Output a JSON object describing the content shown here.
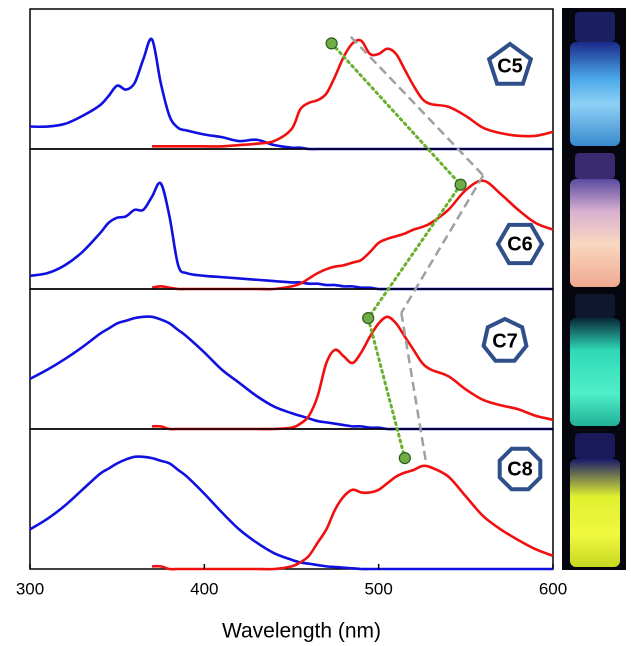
{
  "chart_data": [
    {
      "type": "line",
      "label": "C5",
      "x": [
        300,
        310,
        320,
        330,
        340,
        345,
        350,
        355,
        360,
        365,
        370,
        375,
        380,
        385,
        390,
        400,
        410,
        420,
        430,
        440,
        450,
        455,
        460,
        465,
        470,
        475,
        480,
        485,
        490,
        495,
        500,
        505,
        510,
        515,
        520,
        525,
        530,
        540,
        550,
        560,
        570,
        580,
        590,
        600
      ],
      "xlim": [
        300,
        600
      ],
      "ylim": [
        0,
        1
      ],
      "series": [
        {
          "color": "#1010e0",
          "values": [
            0.17,
            0.17,
            0.19,
            0.25,
            0.33,
            0.4,
            0.48,
            0.45,
            0.5,
            0.68,
            0.83,
            0.5,
            0.25,
            0.16,
            0.14,
            0.11,
            0.09,
            0.06,
            0.07,
            0.03,
            0.01,
            0.01,
            0,
            0,
            0,
            0,
            0,
            0,
            0,
            0,
            0,
            0,
            0,
            0,
            0,
            0,
            0,
            0,
            0,
            0,
            0,
            0,
            0,
            0
          ]
        },
        {
          "color": "#f01010",
          "values": [
            null,
            null,
            null,
            null,
            null,
            null,
            null,
            null,
            null,
            null,
            0.02,
            0.02,
            0.02,
            0.02,
            0.02,
            0.02,
            0.02,
            0.03,
            0.04,
            0.06,
            0.15,
            0.3,
            0.35,
            0.37,
            0.42,
            0.55,
            0.7,
            0.8,
            0.82,
            0.72,
            0.72,
            0.76,
            0.72,
            0.6,
            0.48,
            0.38,
            0.34,
            0.32,
            0.25,
            0.16,
            0.12,
            0.1,
            0.1,
            0.13
          ]
        }
      ],
      "dot": [
        473,
        0.8
      ],
      "peak": [
        484,
        0.85
      ]
    },
    {
      "type": "line",
      "label": "C6",
      "x": [
        300,
        310,
        320,
        330,
        340,
        345,
        350,
        355,
        360,
        365,
        370,
        375,
        380,
        385,
        390,
        400,
        410,
        420,
        430,
        440,
        450,
        455,
        460,
        465,
        470,
        475,
        480,
        485,
        490,
        495,
        500,
        505,
        510,
        515,
        520,
        525,
        530,
        540,
        550,
        560,
        570,
        580,
        590,
        600
      ],
      "xlim": [
        300,
        600
      ],
      "ylim": [
        0,
        1
      ],
      "series": [
        {
          "color": "#1010e0",
          "values": [
            0.1,
            0.12,
            0.18,
            0.28,
            0.42,
            0.5,
            0.54,
            0.55,
            0.6,
            0.6,
            0.7,
            0.8,
            0.55,
            0.18,
            0.12,
            0.1,
            0.09,
            0.08,
            0.07,
            0.06,
            0.05,
            0.05,
            0.04,
            0.04,
            0.03,
            0.03,
            0.02,
            0.02,
            0.01,
            0.01,
            0,
            0,
            0,
            0,
            0,
            0,
            0,
            0,
            0,
            0,
            0,
            0,
            0,
            0
          ]
        },
        {
          "color": "#f01010",
          "values": [
            null,
            null,
            null,
            null,
            null,
            null,
            null,
            null,
            null,
            null,
            0.01,
            0.02,
            0.01,
            0,
            0,
            0,
            0,
            0,
            0,
            0,
            0.02,
            0.04,
            0.08,
            0.12,
            0.15,
            0.17,
            0.18,
            0.2,
            0.22,
            0.28,
            0.35,
            0.38,
            0.4,
            0.42,
            0.45,
            0.47,
            0.5,
            0.6,
            0.75,
            0.82,
            0.72,
            0.6,
            0.5,
            0.45
          ]
        }
      ],
      "dot": [
        547,
        0.79
      ],
      "peak": [
        560,
        0.86
      ]
    },
    {
      "type": "line",
      "label": "C7",
      "x": [
        300,
        310,
        320,
        330,
        340,
        345,
        350,
        355,
        360,
        365,
        370,
        375,
        380,
        385,
        390,
        400,
        410,
        420,
        430,
        440,
        450,
        455,
        460,
        465,
        470,
        475,
        480,
        485,
        490,
        495,
        500,
        505,
        510,
        515,
        520,
        525,
        530,
        540,
        550,
        560,
        570,
        580,
        590,
        600
      ],
      "xlim": [
        300,
        600
      ],
      "ylim": [
        0,
        1
      ],
      "series": [
        {
          "color": "#1010e0",
          "values": [
            0.38,
            0.45,
            0.53,
            0.62,
            0.72,
            0.76,
            0.8,
            0.82,
            0.84,
            0.85,
            0.85,
            0.83,
            0.8,
            0.75,
            0.7,
            0.58,
            0.45,
            0.35,
            0.25,
            0.17,
            0.12,
            0.1,
            0.08,
            0.06,
            0.05,
            0.04,
            0.03,
            0.02,
            0.02,
            0.01,
            0.01,
            0,
            0,
            0,
            0,
            0,
            0,
            0,
            0,
            0,
            0,
            0,
            0,
            0
          ]
        },
        {
          "color": "#f01010",
          "values": [
            null,
            null,
            null,
            null,
            null,
            null,
            null,
            null,
            null,
            null,
            0.02,
            0.02,
            0,
            0,
            0,
            0,
            0,
            0,
            0,
            0,
            0.01,
            0.04,
            0.1,
            0.25,
            0.5,
            0.6,
            0.55,
            0.5,
            0.58,
            0.7,
            0.8,
            0.85,
            0.8,
            0.7,
            0.6,
            0.5,
            0.45,
            0.4,
            0.3,
            0.22,
            0.18,
            0.15,
            0.1,
            0.07
          ]
        }
      ],
      "dot": [
        494,
        0.84
      ],
      "peak": [
        513,
        0.88
      ]
    },
    {
      "type": "line",
      "label": "C8",
      "x": [
        300,
        310,
        320,
        330,
        340,
        345,
        350,
        355,
        360,
        365,
        370,
        375,
        380,
        385,
        390,
        400,
        410,
        420,
        430,
        440,
        450,
        455,
        460,
        465,
        470,
        475,
        480,
        485,
        490,
        495,
        500,
        505,
        510,
        515,
        520,
        525,
        530,
        540,
        550,
        560,
        570,
        580,
        590,
        600
      ],
      "xlim": [
        300,
        600
      ],
      "ylim": [
        0,
        1
      ],
      "xticks": [
        300,
        400,
        500,
        600
      ],
      "xlabel": "Wavelength (nm)",
      "series": [
        {
          "color": "#1010e0",
          "values": [
            0.3,
            0.38,
            0.48,
            0.6,
            0.72,
            0.76,
            0.8,
            0.83,
            0.85,
            0.85,
            0.84,
            0.82,
            0.8,
            0.75,
            0.7,
            0.57,
            0.43,
            0.3,
            0.2,
            0.12,
            0.07,
            0.05,
            0.04,
            0.03,
            0.02,
            0.015,
            0.01,
            0.005,
            0,
            0,
            0,
            0,
            0,
            0,
            0,
            0,
            0,
            0,
            0,
            0,
            0,
            0,
            0,
            0
          ]
        },
        {
          "color": "#f01010",
          "values": [
            null,
            null,
            null,
            null,
            null,
            null,
            null,
            null,
            null,
            null,
            0.02,
            0.02,
            0,
            0,
            0,
            0,
            0,
            0,
            0,
            0,
            0.02,
            0.05,
            0.1,
            0.2,
            0.3,
            0.45,
            0.55,
            0.6,
            0.58,
            0.58,
            0.6,
            0.65,
            0.7,
            0.73,
            0.75,
            0.78,
            0.77,
            0.7,
            0.55,
            0.4,
            0.3,
            0.22,
            0.15,
            0.1
          ]
        }
      ],
      "dot": [
        515,
        0.84
      ],
      "peak": [
        527,
        0.82
      ]
    }
  ]
}
